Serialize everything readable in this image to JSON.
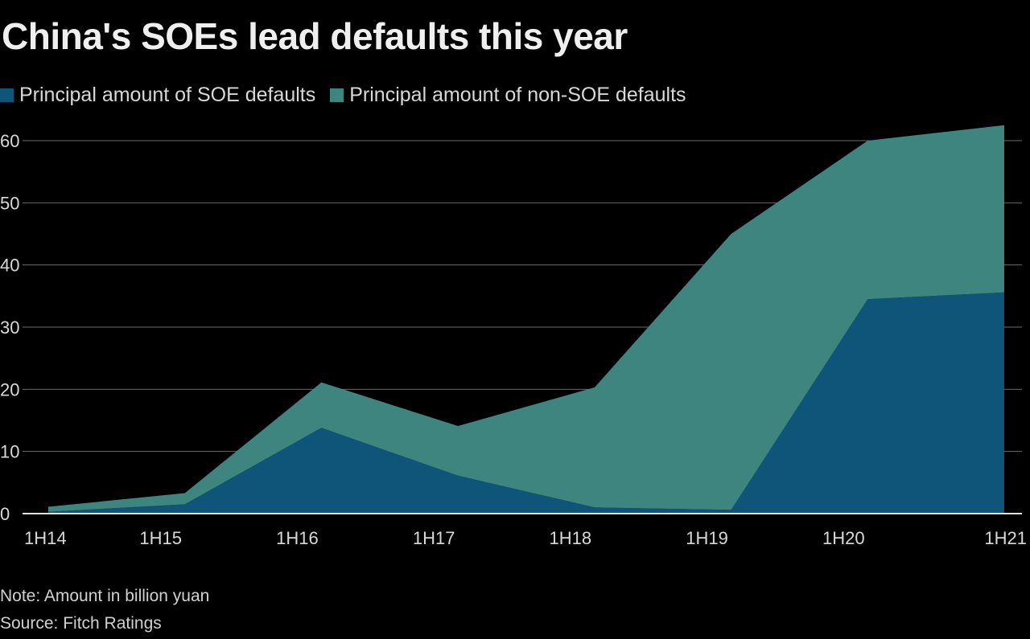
{
  "chart_data": {
    "type": "area",
    "stacked": true,
    "title": "China's SOEs lead defaults this year",
    "categories": [
      "1H14",
      "1H15",
      "1H16",
      "1H17",
      "1H18",
      "1H19",
      "1H20",
      "1H21"
    ],
    "series": [
      {
        "name": "Principal amount of SOE defaults",
        "color": "#0f5479",
        "values": [
          0.3,
          1.5,
          13.8,
          6.1,
          1.0,
          0.6,
          34.5,
          35.6
        ]
      },
      {
        "name": "Principal amount of non-SOE defaults",
        "color": "#3e8580",
        "values": [
          0.8,
          1.8,
          7.3,
          8.0,
          19.3,
          44.4,
          25.5,
          26.9
        ]
      }
    ],
    "ylim": [
      0,
      60
    ],
    "yticks": [
      0,
      10,
      20,
      30,
      40,
      50,
      60
    ],
    "grid": true,
    "legend_position": "top-left",
    "note": "Note: Amount in billion yuan",
    "source": "Source: Fitch Ratings"
  }
}
